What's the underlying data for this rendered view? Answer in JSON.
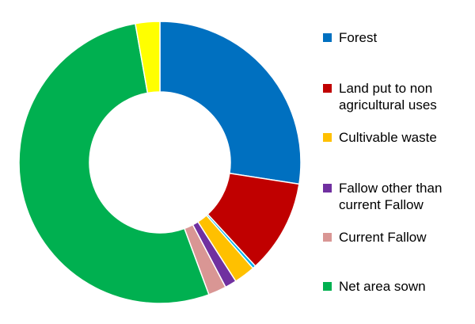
{
  "chart_data": {
    "type": "pie",
    "style": "doughnut",
    "title": "",
    "legend_position": "right",
    "series": [
      {
        "slices": [
          {
            "label": "Forest",
            "value": 22.6,
            "color": "#0070C0"
          },
          {
            "label": "Land put to non agricultural uses",
            "value": 8.8,
            "color": "#C00000"
          },
          {
            "label": "",
            "value": 0.3,
            "color": "#00B0F0"
          },
          {
            "label": "Cultivable waste",
            "value": 2.0,
            "color": "#FFC000"
          },
          {
            "label": "Fallow other than current Fallow",
            "value": 1.1,
            "color": "#7030A0"
          },
          {
            "label": "Current Fallow",
            "value": 1.7,
            "color": "#D99694"
          },
          {
            "label": "Net area sown",
            "value": 43.5,
            "color": "#00B050"
          },
          {
            "label": "",
            "value": 2.3,
            "color": "#FFFF00"
          }
        ]
      }
    ]
  },
  "legend": [
    {
      "label": "Forest",
      "color": "#0070C0"
    },
    {
      "label": "Land put to non agricultural uses",
      "color": "#C00000"
    },
    {
      "label": "Cultivable waste",
      "color": "#FFC000"
    },
    {
      "label": "Fallow other than current Fallow",
      "color": "#7030A0"
    },
    {
      "label": "Current Fallow",
      "color": "#D99694"
    },
    {
      "label": "Net area sown",
      "color": "#00B050"
    }
  ]
}
